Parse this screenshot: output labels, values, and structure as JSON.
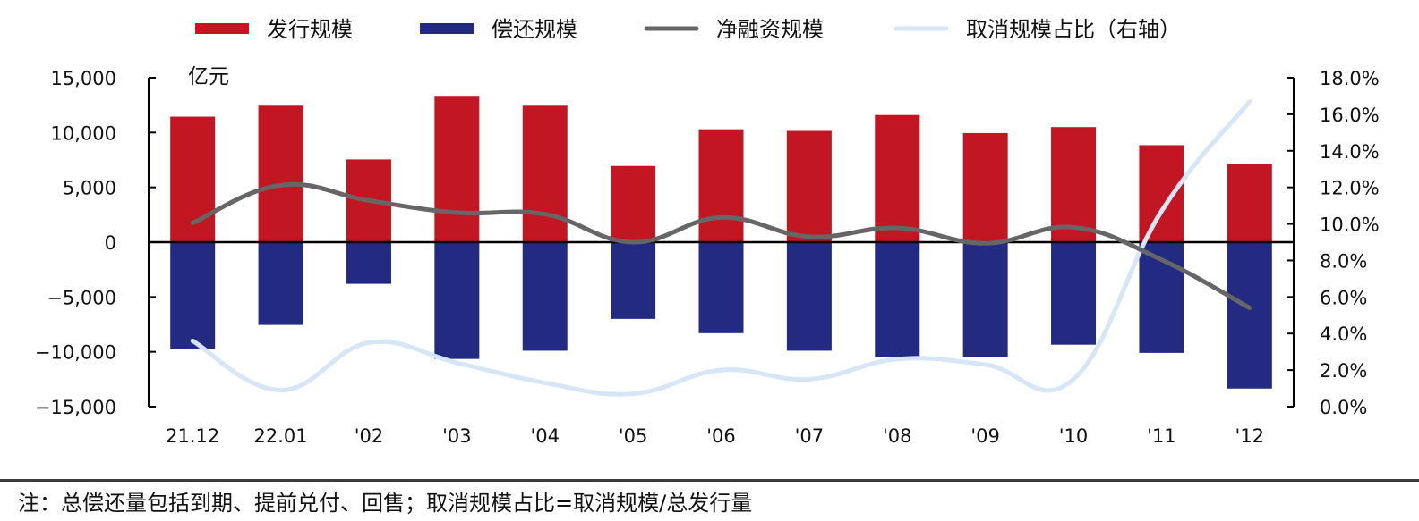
{
  "chart_data": {
    "type": "bar",
    "title": "",
    "unit_label": "亿元",
    "categories": [
      "21.12",
      "22.01",
      "'02",
      "'03",
      "'04",
      "'05",
      "'06",
      "'07",
      "'08",
      "'09",
      "'10",
      "'11",
      "'12"
    ],
    "series": [
      {
        "name": "发行规模",
        "type": "bar",
        "axis": "left",
        "color": "#C21623",
        "values": [
          11450,
          12450,
          7550,
          13350,
          12450,
          6950,
          10300,
          10150,
          11600,
          9950,
          10500,
          8850,
          7150
        ]
      },
      {
        "name": "偿还规模",
        "type": "bar",
        "axis": "left",
        "color": "#222A82",
        "values": [
          -9700,
          -7550,
          -3800,
          -10650,
          -9900,
          -7000,
          -8300,
          -9900,
          -10500,
          -10450,
          -9350,
          -10100,
          -13350
        ]
      },
      {
        "name": "净融资规模",
        "type": "line",
        "axis": "left",
        "color": "#666666",
        "values": [
          1750,
          5200,
          3800,
          2700,
          2550,
          0,
          2250,
          500,
          1300,
          -100,
          1350,
          -1600,
          -6000
        ]
      },
      {
        "name": "取消规模占比（右轴）",
        "type": "line",
        "axis": "right",
        "color": "#D6E6F6",
        "values": [
          3.6,
          0.9,
          3.5,
          2.4,
          1.3,
          0.7,
          2.0,
          1.5,
          2.6,
          2.3,
          1.5,
          10.7,
          16.7
        ]
      }
    ],
    "left_axis": {
      "ylim": [
        -15000,
        15000
      ],
      "ticks": [
        15000,
        10000,
        5000,
        0,
        -5000,
        -10000,
        -15000
      ],
      "tick_labels": [
        "15,000",
        "10,000",
        "5,000",
        "0",
        "−5,000",
        "−10,000",
        "−15,000"
      ]
    },
    "right_axis": {
      "ylim": [
        0,
        18
      ],
      "ticks": [
        18,
        16,
        14,
        12,
        10,
        8,
        6,
        4,
        2,
        0
      ],
      "tick_labels": [
        "18.0%",
        "16.0%",
        "14.0%",
        "12.0%",
        "10.0%",
        "8.0%",
        "6.0%",
        "4.0%",
        "2.0%",
        "0.0%"
      ]
    },
    "xlabel": "",
    "ylabel": "亿元",
    "grid": false,
    "legend_position": "top-center"
  },
  "note": "注：总偿还量包括到期、提前兑付、回售；取消规模占比=取消规模/总发行量"
}
